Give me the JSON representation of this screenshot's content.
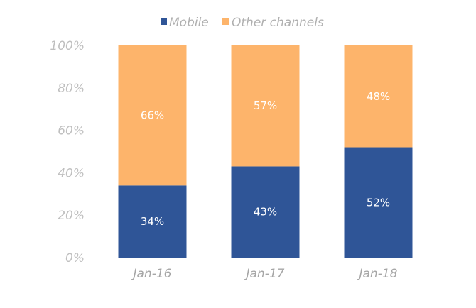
{
  "chart_data": {
    "type": "bar",
    "stacked": true,
    "categories": [
      "Jan-16",
      "Jan-17",
      "Jan-18"
    ],
    "series": [
      {
        "name": "Mobile",
        "values": [
          34,
          43,
          52
        ],
        "color": "#2f5597",
        "labels": [
          "34%",
          "43%",
          "52%"
        ]
      },
      {
        "name": "Other channels",
        "values": [
          66,
          57,
          48
        ],
        "color": "#fdb46b",
        "labels": [
          "66%",
          "57%",
          "48%"
        ]
      }
    ],
    "ylim": [
      0,
      100
    ],
    "yticks": [
      "0%",
      "20%",
      "40%",
      "60%",
      "80%",
      "100%"
    ],
    "grid": false,
    "legend_position": "top-center"
  }
}
